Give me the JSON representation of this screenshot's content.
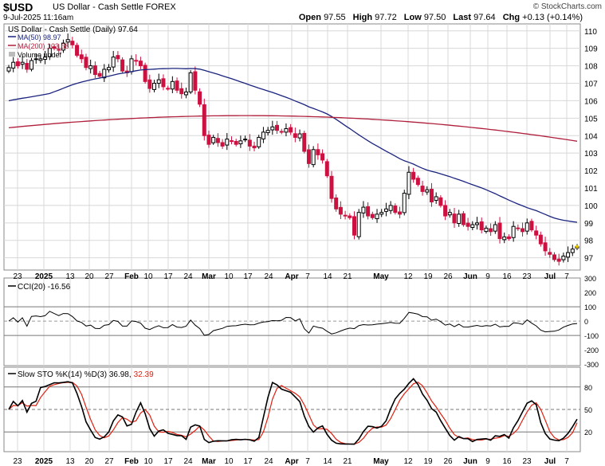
{
  "header": {
    "symbol": "$USD",
    "name": "US Dollar - Cash Settle FOREX",
    "date": "9-Jul-2025 11:16am",
    "brand": "© StockCharts.com",
    "open_label": "Open",
    "open": "97.55",
    "high_label": "High",
    "high": "97.72",
    "low_label": "Low",
    "low": "97.50",
    "last_label": "Last",
    "last": "97.64",
    "chg_label": "Chg",
    "chg": "+0.13 (+0.14%)"
  },
  "colors": {
    "up": "#000000",
    "down": "#cc1040",
    "ma50": "#1a237e",
    "ma200": "#b01f3c",
    "cci_pos": "#5d8f5a",
    "cci_neg": "#9a5a54",
    "stoK": "#000000",
    "stoD": "#e02010",
    "grid": "#d8d8d8"
  },
  "chart_data": [
    {
      "type": "candlestick",
      "title": "US Dollar - Cash Settle (Daily) 97.64",
      "legend": [
        "MA(50) 98.97",
        "MA(200) 103.68",
        "Volume undef"
      ],
      "legend_position": "top-left",
      "ylim": [
        96.3,
        110.4
      ],
      "yticks": [
        97,
        98,
        99,
        100,
        101,
        102,
        103,
        104,
        105,
        106,
        107,
        108,
        109,
        110
      ],
      "xticks": [
        "23",
        "2025",
        "13",
        "20",
        "27",
        "Feb",
        "10",
        "17",
        "24",
        "Mar",
        "10",
        "17",
        "24",
        "Apr",
        "7",
        "14",
        "21",
        "May",
        "12",
        "19",
        "26",
        "Jun",
        "9",
        "16",
        "23",
        "Jul",
        "7"
      ],
      "closes": [
        107.9,
        108.2,
        108.0,
        108.2,
        107.8,
        108.3,
        108.4,
        108.4,
        108.5,
        109.0,
        109.0,
        108.9,
        109.3,
        109.5,
        109.2,
        108.6,
        108.4,
        107.9,
        108.0,
        107.5,
        107.4,
        107.8,
        107.9,
        108.5,
        108.4,
        107.7,
        107.6,
        108.4,
        108.3,
        108.0,
        107.1,
        106.7,
        107.0,
        107.2,
        106.8,
        106.7,
        107.1,
        106.6,
        106.4,
        106.5,
        107.6,
        106.6,
        105.8,
        104.0,
        103.5,
        103.9,
        103.6,
        103.4,
        103.8,
        103.7,
        103.5,
        103.7,
        103.8,
        103.4,
        103.3,
        103.9,
        104.2,
        104.3,
        104.5,
        104.3,
        104.2,
        104.4,
        104.2,
        103.9,
        104.1,
        103.1,
        102.4,
        103.2,
        102.9,
        102.6,
        101.7,
        100.4,
        99.8,
        99.5,
        99.4,
        99.3,
        98.3,
        99.6,
        99.9,
        99.4,
        99.3,
        99.5,
        99.6,
        99.8,
        100.0,
        99.6,
        99.5,
        100.7,
        101.9,
        101.5,
        101.2,
        100.8,
        100.9,
        100.2,
        100.5,
        100.0,
        99.4,
        99.6,
        99.0,
        99.5,
        98.9,
        98.8,
        98.9,
        99.0,
        98.6,
        98.7,
        98.5,
        98.9,
        98.1,
        98.2,
        98.1,
        98.8,
        98.7,
        98.5,
        99.0,
        98.6,
        98.3,
        97.8,
        97.4,
        97.2,
        96.9,
        96.8,
        97.1,
        97.3,
        97.5,
        97.64
      ],
      "ma50_last": 98.97,
      "ma200_last": 103.68
    },
    {
      "type": "line",
      "title": "CCI(20) -16.56",
      "ylim": [
        -310,
        300
      ],
      "yticks": [
        300,
        200,
        100,
        0,
        -100,
        -200,
        -300
      ],
      "reference_lines": [
        100,
        0,
        -100
      ],
      "last": -16.56
    },
    {
      "type": "line",
      "title": "Slow STO %K(14) %D(3) 36.98, 32.39",
      "series": [
        {
          "name": "%K(14)",
          "last": 36.98
        },
        {
          "name": "%D(3)",
          "last": 32.39
        }
      ],
      "ylim": [
        0,
        100
      ],
      "yticks": [
        80,
        50,
        20
      ],
      "reference_lines": [
        80,
        50,
        20
      ]
    }
  ]
}
